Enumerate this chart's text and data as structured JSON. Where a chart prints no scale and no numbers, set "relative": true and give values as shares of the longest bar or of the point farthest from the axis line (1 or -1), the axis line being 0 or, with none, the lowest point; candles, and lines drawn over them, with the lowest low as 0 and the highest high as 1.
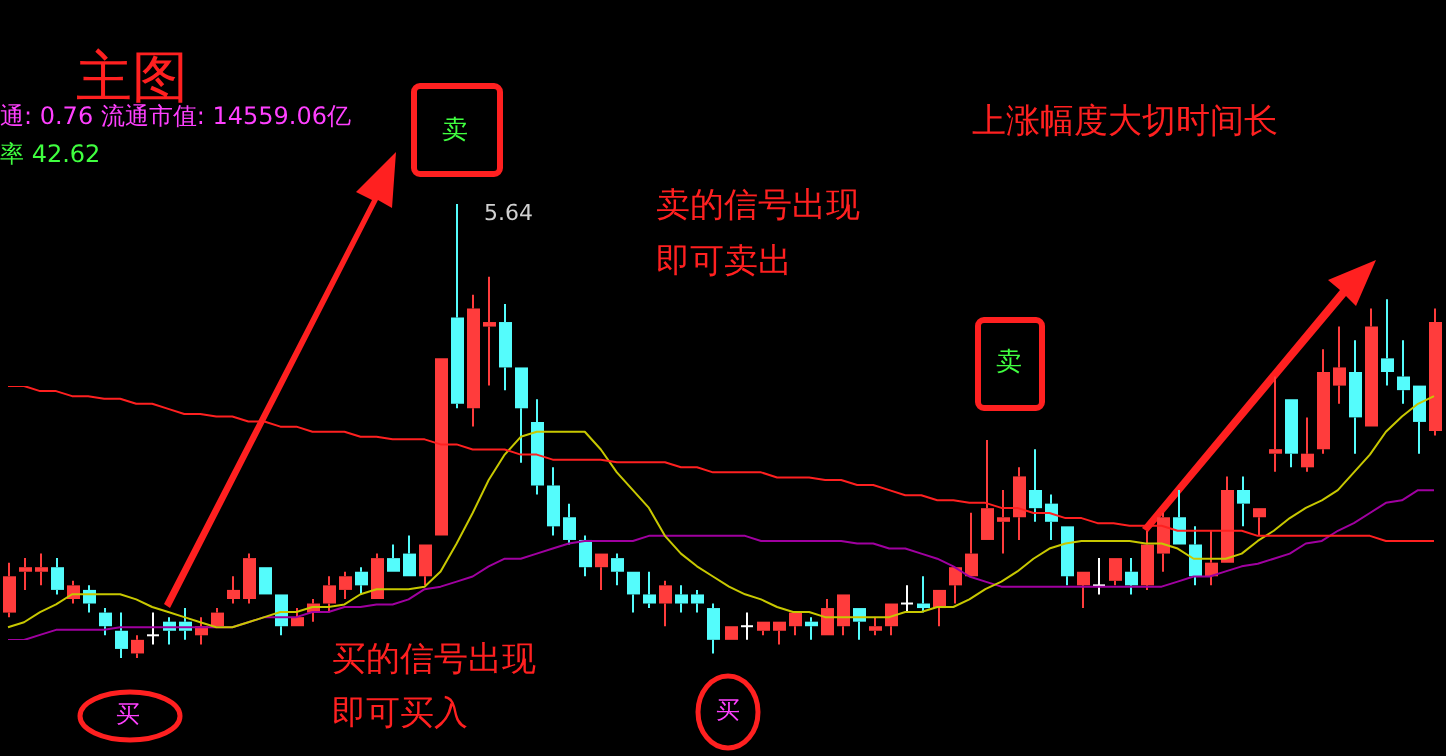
{
  "chart_data": [
    {
      "type": "candlestick",
      "relative": true,
      "legend": false,
      "categories": [
        null,
        null,
        null,
        null,
        null,
        null,
        null,
        null,
        null,
        null,
        null,
        null,
        null,
        null,
        null,
        null,
        null,
        null,
        null,
        null,
        null,
        null,
        null,
        null,
        null,
        null,
        null,
        null,
        null,
        null,
        null,
        null,
        null,
        null,
        null,
        null,
        null,
        null,
        null,
        null,
        null,
        null,
        null,
        null,
        null,
        null,
        null,
        null,
        null,
        null,
        null,
        null,
        null,
        null,
        null,
        null,
        null,
        null,
        null,
        null,
        null,
        null,
        null,
        null,
        null,
        null,
        null,
        null,
        null,
        null,
        null,
        null,
        null,
        null,
        null,
        null,
        null,
        null,
        null,
        null,
        null,
        null,
        null,
        null,
        null,
        null,
        null,
        null,
        null,
        null
      ],
      "ohlc": [
        [
          0.1,
          0.21,
          0.09,
          0.18
        ],
        [
          0.19,
          0.22,
          0.15,
          0.2
        ],
        [
          0.19,
          0.23,
          0.16,
          0.2
        ],
        [
          0.2,
          0.22,
          0.14,
          0.15
        ],
        [
          0.13,
          0.17,
          0.12,
          0.16
        ],
        [
          0.15,
          0.16,
          0.1,
          0.12
        ],
        [
          0.1,
          0.11,
          0.05,
          0.07
        ],
        [
          0.06,
          0.1,
          0,
          0.02
        ],
        [
          0.01,
          0.05,
          0,
          0.04
        ],
        [
          0.05,
          0.1,
          0.03,
          0.05
        ],
        [
          0.08,
          0.09,
          0.03,
          0.06
        ],
        [
          0.08,
          0.11,
          0.04,
          0.06
        ],
        [
          0.05,
          0.09,
          0.03,
          0.07
        ],
        [
          0.07,
          0.11,
          0.07,
          0.1
        ],
        [
          0.13,
          0.18,
          0.12,
          0.15
        ],
        [
          0.13,
          0.23,
          0.12,
          0.22
        ],
        [
          0.2,
          0.2,
          0.14,
          0.14
        ],
        [
          0.14,
          0.14,
          0.05,
          0.07
        ],
        [
          0.07,
          0.11,
          0.07,
          0.09
        ],
        [
          0.1,
          0.13,
          0.08,
          0.12
        ],
        [
          0.12,
          0.18,
          0.1,
          0.16
        ],
        [
          0.15,
          0.19,
          0.13,
          0.18
        ],
        [
          0.19,
          0.2,
          0.14,
          0.16
        ],
        [
          0.13,
          0.23,
          0.13,
          0.22
        ],
        [
          0.22,
          0.25,
          0.19,
          0.19
        ],
        [
          0.23,
          0.27,
          0.18,
          0.18
        ],
        [
          0.18,
          0.25,
          0.16,
          0.25
        ],
        [
          0.27,
          0.66,
          0.27,
          0.66
        ],
        [
          0.75,
          1,
          0.55,
          0.56
        ],
        [
          0.55,
          0.8,
          0.51,
          0.77
        ],
        [
          0.73,
          0.84,
          0.6,
          0.74
        ],
        [
          0.74,
          0.78,
          0.59,
          0.64
        ],
        [
          0.64,
          0.64,
          0.43,
          0.55
        ],
        [
          0.52,
          0.57,
          0.36,
          0.38
        ],
        [
          0.38,
          0.42,
          0.27,
          0.29
        ],
        [
          0.31,
          0.34,
          0.25,
          0.26
        ],
        [
          0.26,
          0.27,
          0.18,
          0.2
        ],
        [
          0.2,
          0.23,
          0.15,
          0.23
        ],
        [
          0.22,
          0.23,
          0.16,
          0.19
        ],
        [
          0.19,
          0.19,
          0.1,
          0.14
        ],
        [
          0.14,
          0.19,
          0.11,
          0.12
        ],
        [
          0.12,
          0.17,
          0.07,
          0.16
        ],
        [
          0.14,
          0.16,
          0.1,
          0.12
        ],
        [
          0.14,
          0.15,
          0.1,
          0.12
        ],
        [
          0.11,
          0.12,
          0.01,
          0.04
        ],
        [
          0.04,
          0.07,
          0.04,
          0.07
        ],
        [
          0.07,
          0.1,
          0.04,
          0.07
        ],
        [
          0.06,
          0.08,
          0.05,
          0.08
        ],
        [
          0.06,
          0.08,
          0.03,
          0.08
        ],
        [
          0.07,
          0.1,
          0.05,
          0.1
        ],
        [
          0.08,
          0.09,
          0.04,
          0.07
        ],
        [
          0.05,
          0.13,
          0.05,
          0.11
        ],
        [
          0.07,
          0.14,
          0.05,
          0.14
        ],
        [
          0.11,
          0.11,
          0.04,
          0.08
        ],
        [
          0.06,
          0.09,
          0.05,
          0.07
        ],
        [
          0.07,
          0.12,
          0.05,
          0.12
        ],
        [
          0.12,
          0.16,
          0.1,
          0.12
        ],
        [
          0.12,
          0.18,
          0.1,
          0.11
        ],
        [
          0.11,
          0.15,
          0.07,
          0.15
        ],
        [
          0.16,
          0.2,
          0.12,
          0.2
        ],
        [
          0.18,
          0.32,
          0.18,
          0.23
        ],
        [
          0.26,
          0.48,
          0.26,
          0.33
        ],
        [
          0.3,
          0.37,
          0.23,
          0.31
        ],
        [
          0.31,
          0.42,
          0.26,
          0.4
        ],
        [
          0.37,
          0.46,
          0.3,
          0.33
        ],
        [
          0.34,
          0.36,
          0.26,
          0.3
        ],
        [
          0.29,
          0.29,
          0.16,
          0.18
        ],
        [
          0.16,
          0.19,
          0.11,
          0.19
        ],
        [
          0.16,
          0.22,
          0.14,
          0.16
        ],
        [
          0.17,
          0.22,
          0.16,
          0.22
        ],
        [
          0.19,
          0.22,
          0.14,
          0.16
        ],
        [
          0.16,
          0.28,
          0.15,
          0.25
        ],
        [
          0.23,
          0.32,
          0.19,
          0.31
        ],
        [
          0.31,
          0.37,
          0.25,
          0.25
        ],
        [
          0.25,
          0.29,
          0.16,
          0.18
        ],
        [
          0.18,
          0.28,
          0.16,
          0.21
        ],
        [
          0.21,
          0.4,
          0.21,
          0.37
        ],
        [
          0.37,
          0.4,
          0.29,
          0.34
        ],
        [
          0.31,
          0.33,
          0.27,
          0.33
        ],
        [
          0.45,
          0.62,
          0.41,
          0.46
        ],
        [
          0.57,
          0.57,
          0.42,
          0.45
        ],
        [
          0.42,
          0.53,
          0.41,
          0.45
        ],
        [
          0.46,
          0.68,
          0.45,
          0.63
        ],
        [
          0.6,
          0.73,
          0.56,
          0.64
        ],
        [
          0.63,
          0.7,
          0.45,
          0.53
        ],
        [
          0.51,
          0.77,
          0.51,
          0.73
        ],
        [
          0.66,
          0.79,
          0.6,
          0.63
        ],
        [
          0.62,
          0.7,
          0.56,
          0.59
        ],
        [
          0.6,
          0.6,
          0.45,
          0.52
        ],
        [
          0.5,
          0.77,
          0.49,
          0.74
        ]
      ],
      "colors": [
        "#ff3c3c",
        "#ff3c3c",
        "#ff3c3c",
        "#54fcfc",
        "#ff3c3c",
        "#54fcfc",
        "#54fcfc",
        "#54fcfc",
        "#ff3c3c",
        "#ffffff",
        "#54fcfc",
        "#54fcfc",
        "#ff3c3c",
        "#ff3c3c",
        "#ff3c3c",
        "#ff3c3c",
        "#54fcfc",
        "#54fcfc",
        "#ff3c3c",
        "#ff3c3c",
        "#ff3c3c",
        "#ff3c3c",
        "#54fcfc",
        "#ff3c3c",
        "#54fcfc",
        "#54fcfc",
        "#ff3c3c",
        "#ff3c3c",
        "#54fcfc",
        "#ff3c3c",
        "#ff3c3c",
        "#54fcfc",
        "#54fcfc",
        "#54fcfc",
        "#54fcfc",
        "#54fcfc",
        "#54fcfc",
        "#ff3c3c",
        "#54fcfc",
        "#54fcfc",
        "#54fcfc",
        "#ff3c3c",
        "#54fcfc",
        "#54fcfc",
        "#54fcfc",
        "#ff3c3c",
        "#ffffff",
        "#ff3c3c",
        "#ff3c3c",
        "#ff3c3c",
        "#54fcfc",
        "#ff3c3c",
        "#ff3c3c",
        "#54fcfc",
        "#ff3c3c",
        "#ff3c3c",
        "#ffffff",
        "#54fcfc",
        "#ff3c3c",
        "#ff3c3c",
        "#ff3c3c",
        "#ff3c3c",
        "#ff3c3c",
        "#ff3c3c",
        "#54fcfc",
        "#54fcfc",
        "#54fcfc",
        "#ff3c3c",
        "#ffffff",
        "#ff3c3c",
        "#54fcfc",
        "#ff3c3c",
        "#ff3c3c",
        "#54fcfc",
        "#54fcfc",
        "#ff3c3c",
        "#ff3c3c",
        "#54fcfc",
        "#ff3c3c",
        "#ff3c3c",
        "#54fcfc",
        "#ff3c3c",
        "#ff3c3c",
        "#ff3c3c",
        "#54fcfc",
        "#ff3c3c",
        "#54fcfc",
        "#54fcfc",
        "#54fcfc",
        "#ff3c3c"
      ],
      "annotations": [
        "主图",
        "通: 0.76 流通市值: 14559.06亿",
        "率 42.62",
        "卖",
        "5.64",
        "卖的信号出现",
        "即可卖出",
        "上涨幅度大切时间长",
        "卖",
        "买的信号出现",
        "即可买入",
        "买",
        "买"
      ]
    },
    {
      "type": "line",
      "relative": true,
      "legend": false,
      "marker": "none",
      "categories": [
        null,
        null,
        null,
        null,
        null,
        null,
        null,
        null,
        null,
        null,
        null,
        null,
        null,
        null,
        null,
        null,
        null,
        null,
        null,
        null,
        null,
        null,
        null,
        null,
        null,
        null,
        null,
        null,
        null,
        null,
        null,
        null,
        null,
        null,
        null,
        null,
        null,
        null,
        null,
        null,
        null,
        null,
        null,
        null,
        null,
        null,
        null,
        null,
        null,
        null,
        null,
        null,
        null,
        null,
        null,
        null,
        null,
        null,
        null,
        null,
        null,
        null,
        null,
        null,
        null,
        null,
        null,
        null,
        null,
        null,
        null,
        null,
        null,
        null,
        null,
        null,
        null,
        null,
        null,
        null,
        null,
        null,
        null,
        null,
        null,
        null,
        null,
        null,
        null,
        null
      ],
      "series": [
        {
          "color": "#ff2020",
          "values": [
            1,
            1,
            0.98,
            0.98,
            0.96,
            0.96,
            0.95,
            0.95,
            0.93,
            0.93,
            0.91,
            0.89,
            0.89,
            0.88,
            0.88,
            0.86,
            0.86,
            0.84,
            0.84,
            0.82,
            0.82,
            0.82,
            0.8,
            0.8,
            0.79,
            0.79,
            0.79,
            0.77,
            0.77,
            0.75,
            0.75,
            0.75,
            0.73,
            0.73,
            0.71,
            0.71,
            0.71,
            0.71,
            0.7,
            0.7,
            0.7,
            0.7,
            0.68,
            0.68,
            0.66,
            0.66,
            0.66,
            0.66,
            0.64,
            0.64,
            0.64,
            0.63,
            0.63,
            0.61,
            0.61,
            0.59,
            0.57,
            0.57,
            0.55,
            0.55,
            0.54,
            0.54,
            0.52,
            0.52,
            0.5,
            0.5,
            0.48,
            0.48,
            0.46,
            0.46,
            0.45,
            0.45,
            0.45,
            0.43,
            0.43,
            0.43,
            0.43,
            0.43,
            0.41,
            0.41,
            0.41,
            0.41,
            0.41,
            0.41,
            0.41,
            0.41,
            0.39,
            0.39,
            0.39,
            0.39
          ]
        },
        {
          "color": "#c8c800",
          "values": [
            0.05,
            0.07,
            0.11,
            0.14,
            0.18,
            0.18,
            0.18,
            0.18,
            0.16,
            0.13,
            0.11,
            0.09,
            0.07,
            0.05,
            0.05,
            0.07,
            0.09,
            0.11,
            0.11,
            0.13,
            0.13,
            0.14,
            0.18,
            0.2,
            0.2,
            0.2,
            0.21,
            0.27,
            0.38,
            0.5,
            0.63,
            0.73,
            0.8,
            0.82,
            0.82,
            0.82,
            0.82,
            0.75,
            0.66,
            0.59,
            0.52,
            0.41,
            0.34,
            0.29,
            0.25,
            0.21,
            0.18,
            0.16,
            0.13,
            0.11,
            0.11,
            0.09,
            0.09,
            0.09,
            0.09,
            0.09,
            0.11,
            0.11,
            0.13,
            0.13,
            0.16,
            0.2,
            0.23,
            0.27,
            0.32,
            0.36,
            0.38,
            0.39,
            0.39,
            0.39,
            0.39,
            0.38,
            0.38,
            0.36,
            0.32,
            0.32,
            0.32,
            0.34,
            0.39,
            0.43,
            0.48,
            0.52,
            0.55,
            0.59,
            0.66,
            0.73,
            0.82,
            0.88,
            0.93,
            0.96
          ]
        },
        {
          "color": "#a000a0",
          "values": [
            0,
            0,
            0.02,
            0.04,
            0.04,
            0.04,
            0.04,
            0.05,
            0.05,
            0.05,
            0.05,
            0.05,
            0.05,
            0.05,
            0.05,
            0.07,
            0.09,
            0.09,
            0.09,
            0.11,
            0.11,
            0.13,
            0.13,
            0.14,
            0.14,
            0.16,
            0.2,
            0.21,
            0.23,
            0.25,
            0.29,
            0.32,
            0.32,
            0.34,
            0.36,
            0.38,
            0.39,
            0.39,
            0.39,
            0.39,
            0.41,
            0.41,
            0.41,
            0.41,
            0.41,
            0.41,
            0.41,
            0.39,
            0.39,
            0.39,
            0.39,
            0.39,
            0.39,
            0.38,
            0.38,
            0.36,
            0.36,
            0.34,
            0.32,
            0.29,
            0.25,
            0.23,
            0.21,
            0.21,
            0.21,
            0.21,
            0.21,
            0.21,
            0.21,
            0.21,
            0.21,
            0.21,
            0.21,
            0.23,
            0.25,
            0.25,
            0.27,
            0.29,
            0.3,
            0.32,
            0.34,
            0.38,
            0.39,
            0.43,
            0.46,
            0.5,
            0.54,
            0.55,
            0.59,
            0.59
          ]
        }
      ]
    }
  ]
}
